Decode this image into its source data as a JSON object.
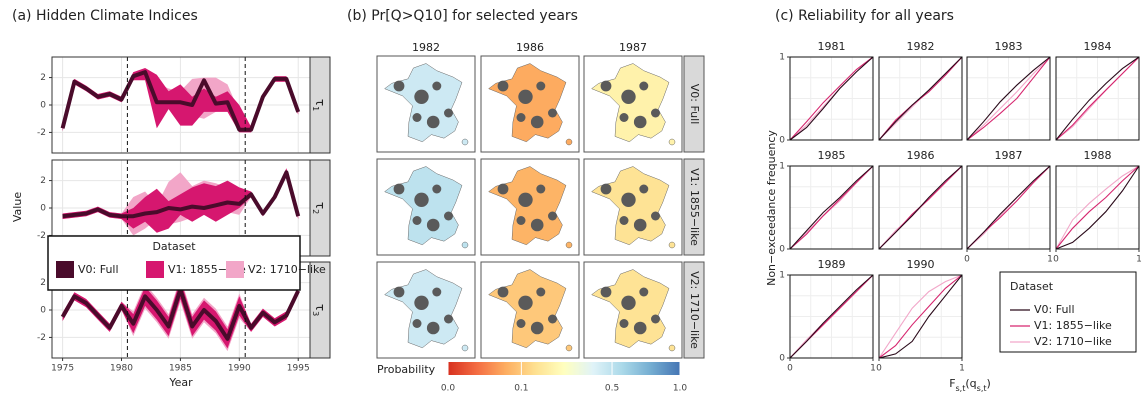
{
  "chart_data": [
    {
      "type": "line",
      "title": "(a) Hidden Climate Indices",
      "xlabel": "Year",
      "ylabel": "Value",
      "x": [
        1975,
        1976,
        1977,
        1978,
        1979,
        1980,
        1981,
        1982,
        1983,
        1984,
        1985,
        1986,
        1987,
        1988,
        1989,
        1990,
        1991,
        1992,
        1993,
        1994,
        1995
      ],
      "xlim": [
        1974.1,
        1996
      ],
      "xticks": [
        1975,
        1980,
        1985,
        1990,
        1995
      ],
      "ylim": [
        -3.5,
        3.5
      ],
      "yticks": [
        -2,
        0,
        2
      ],
      "vlines": [
        1980.5,
        1990.5
      ],
      "grid": true,
      "legend": {
        "title": "Dataset",
        "position": "center"
      },
      "series": [
        {
          "name": "V0: Full",
          "color": "#4a0b2b"
        },
        {
          "name": "V1: 1855−like",
          "color": "#d6176f"
        },
        {
          "name": "V2: 1710−like",
          "color": "#f2a6c8"
        }
      ],
      "facets": [
        {
          "strip": [
            "τ",
            "1"
          ],
          "series": [
            {
              "values": [
                -1.7,
                1.7,
                1.2,
                0.6,
                0.8,
                0.4,
                2.1,
                2.4,
                0.2,
                0.2,
                0.2,
                0.0,
                1.8,
                0.1,
                0.2,
                -1.8,
                -1.8,
                0.6,
                1.9,
                1.9,
                -0.5
              ]
            },
            {
              "lower": [
                -1.9,
                1.5,
                1.0,
                0.4,
                0.6,
                0.2,
                1.8,
                1.8,
                -1.7,
                -0.3,
                -1.5,
                -1.5,
                -0.5,
                -0.5,
                -0.5,
                -2.0,
                -2.0,
                0.4,
                1.7,
                1.7,
                -0.7
              ],
              "upper": [
                -1.5,
                1.9,
                1.4,
                0.8,
                1.0,
                0.6,
                2.4,
                2.7,
                2.2,
                1.0,
                1.5,
                0.6,
                1.2,
                0.6,
                1.0,
                0.0,
                -1.6,
                0.8,
                2.1,
                2.1,
                -0.3
              ]
            },
            {
              "lower": [
                -1.9,
                1.5,
                1.0,
                0.4,
                0.6,
                0.2,
                1.8,
                1.9,
                -0.5,
                -0.2,
                -0.5,
                -0.8,
                -1.0,
                -0.5,
                -0.3,
                -1.5,
                -2.0,
                0.4,
                1.7,
                1.7,
                -0.7
              ],
              "upper": [
                -1.5,
                1.9,
                1.4,
                0.8,
                1.0,
                0.6,
                2.4,
                2.6,
                1.6,
                1.2,
                1.0,
                1.9,
                2.0,
                2.0,
                1.5,
                -0.5,
                -1.6,
                0.8,
                2.1,
                2.1,
                -0.3
              ]
            }
          ]
        },
        {
          "strip": [
            "τ",
            "2"
          ],
          "series": [
            {
              "values": [
                -0.6,
                -0.5,
                -0.4,
                -0.1,
                -0.5,
                -0.6,
                -0.6,
                -0.4,
                -0.3,
                0.0,
                -0.1,
                0.1,
                0.0,
                0.2,
                0.4,
                0.3,
                1.0,
                -0.4,
                0.8,
                2.6,
                -0.6
              ]
            },
            {
              "lower": [
                -0.8,
                -0.7,
                -0.6,
                -0.3,
                -0.7,
                -0.8,
                -1.5,
                -1.0,
                -1.8,
                -1.5,
                -0.5,
                -1.0,
                -0.5,
                -1.0,
                -0.5,
                0.0,
                0.8,
                -0.6,
                0.6,
                2.3,
                -0.8
              ],
              "upper": [
                -0.4,
                -0.3,
                -0.2,
                0.1,
                -0.3,
                -0.4,
                0.0,
                0.8,
                1.4,
                0.5,
                1.0,
                1.5,
                1.8,
                1.6,
                2.0,
                1.5,
                1.2,
                -0.2,
                1.0,
                2.9,
                -0.4
              ]
            },
            {
              "lower": [
                -0.8,
                -0.7,
                -0.6,
                -0.3,
                -0.7,
                -0.8,
                -2.0,
                -1.5,
                -0.8,
                -1.2,
                -1.0,
                -0.7,
                -0.5,
                -0.5,
                -0.3,
                -0.5,
                0.8,
                -0.6,
                0.6,
                2.3,
                -0.8
              ],
              "upper": [
                -0.4,
                -0.3,
                -0.2,
                0.1,
                -0.3,
                -0.4,
                0.8,
                1.2,
                0.2,
                1.9,
                2.6,
                1.6,
                2.0,
                1.8,
                1.5,
                1.0,
                1.2,
                -0.2,
                1.0,
                2.9,
                -0.4
              ]
            }
          ]
        },
        {
          "strip": [
            "τ",
            "3"
          ],
          "series": [
            {
              "values": [
                -0.5,
                1.0,
                0.5,
                -0.4,
                -1.3,
                0.3,
                -1.0,
                1.0,
                0.0,
                -1.2,
                1.5,
                -1.2,
                0.0,
                -0.8,
                -2.1,
                0.3,
                -1.3,
                -0.2,
                -0.9,
                -0.4,
                1.4
              ]
            },
            {
              "lower": [
                -0.8,
                0.7,
                0.2,
                -0.7,
                -1.6,
                0.0,
                -1.7,
                0.3,
                -0.7,
                -1.9,
                0.8,
                -1.9,
                -0.7,
                -1.5,
                -2.8,
                -0.4,
                -1.6,
                -0.5,
                -1.2,
                -0.7,
                1.1
              ],
              "upper": [
                -0.2,
                1.3,
                0.8,
                -0.1,
                -1.0,
                0.6,
                -0.3,
                1.7,
                0.7,
                -0.5,
                2.2,
                -0.5,
                0.7,
                -0.1,
                -1.4,
                1.0,
                -1.0,
                0.1,
                -0.6,
                -0.1,
                1.7
              ]
            },
            {
              "lower": [
                -0.8,
                0.7,
                0.2,
                -0.7,
                -1.6,
                0.0,
                -1.9,
                0.1,
                -0.9,
                -2.1,
                0.6,
                -2.1,
                -0.9,
                -1.7,
                -3.0,
                -0.6,
                -1.6,
                -0.5,
                -1.2,
                -0.7,
                1.1
              ],
              "upper": [
                -0.2,
                1.3,
                0.8,
                -0.1,
                -1.0,
                0.6,
                -0.1,
                1.9,
                0.9,
                -0.3,
                2.4,
                -0.3,
                0.9,
                0.1,
                -1.2,
                1.2,
                -1.0,
                0.1,
                -0.6,
                -0.1,
                1.7
              ]
            }
          ]
        }
      ]
    },
    {
      "type": "map",
      "title": "(b) Pr[Q>Q10] for selected years",
      "columns": [
        "1982",
        "1986",
        "1987"
      ],
      "rows": [
        "V0: Full",
        "V1: 1855−like",
        "V2: 1710−like"
      ],
      "values": [
        [
          0.45,
          0.06,
          0.2
        ],
        [
          0.5,
          0.07,
          0.15
        ],
        [
          0.45,
          0.1,
          0.15
        ]
      ],
      "colorbar": {
        "label": "Probability",
        "lim": [
          0,
          1
        ],
        "scale": "sqrt",
        "ticks": [
          {
            "value": 0,
            "label": "0.0"
          },
          0.1,
          0.5,
          {
            "value": 1,
            "label": "1.0"
          }
        ],
        "colors": [
          "#d7301f",
          "#f46d43",
          "#fdae61",
          "#fee090",
          "#ffffbf",
          "#e0f3f8",
          "#abd9e9",
          "#74add1",
          "#4575b4"
        ]
      }
    },
    {
      "type": "line",
      "title": "(c) Reliability for all years",
      "xlabel": [
        "F",
        "s,t",
        "(q",
        "s,t",
        ")"
      ],
      "ylabel": "Non−exceedance frequency",
      "x": [
        0,
        0.2,
        0.4,
        0.6,
        0.8,
        1
      ],
      "xlim": [
        0,
        1
      ],
      "ylim": [
        0,
        1
      ],
      "xticks": [
        0,
        1
      ],
      "yticks": [
        0,
        1
      ],
      "grid": true,
      "legend": {
        "title": "Dataset",
        "position": "right"
      },
      "series": [
        {
          "name": "V0: Full",
          "color": "#2a0a1a"
        },
        {
          "name": "V1: 1855−like",
          "color": "#d6266f"
        },
        {
          "name": "V2: 1710−like",
          "color": "#f2a7c9"
        }
      ],
      "facets": [
        {
          "title": "1981",
          "values": [
            [
              0,
              0.15,
              0.38,
              0.62,
              0.82,
              1
            ],
            [
              0,
              0.22,
              0.45,
              0.65,
              0.85,
              1
            ],
            [
              0,
              0.18,
              0.4,
              0.62,
              0.82,
              1
            ]
          ]
        },
        {
          "title": "1982",
          "values": [
            [
              0,
              0.22,
              0.42,
              0.6,
              0.8,
              1
            ],
            [
              0,
              0.24,
              0.42,
              0.58,
              0.78,
              1
            ],
            [
              0,
              0.2,
              0.4,
              0.6,
              0.8,
              1
            ]
          ]
        },
        {
          "title": "1983",
          "values": [
            [
              0,
              0.22,
              0.46,
              0.66,
              0.84,
              1
            ],
            [
              0,
              0.15,
              0.32,
              0.5,
              0.75,
              1
            ],
            [
              0,
              0.18,
              0.38,
              0.58,
              0.8,
              1
            ]
          ]
        },
        {
          "title": "1984",
          "values": [
            [
              0,
              0.25,
              0.48,
              0.68,
              0.86,
              1
            ],
            [
              0,
              0.18,
              0.4,
              0.6,
              0.8,
              1
            ],
            [
              0,
              0.16,
              0.38,
              0.6,
              0.8,
              1
            ]
          ]
        },
        {
          "title": "1985",
          "values": [
            [
              0,
              0.22,
              0.44,
              0.62,
              0.82,
              1
            ],
            [
              0,
              0.18,
              0.4,
              0.6,
              0.8,
              1
            ],
            [
              0,
              0.2,
              0.4,
              0.58,
              0.8,
              1
            ]
          ]
        },
        {
          "title": "1986",
          "values": [
            [
              0,
              0.2,
              0.4,
              0.62,
              0.82,
              1
            ],
            [
              0,
              0.2,
              0.42,
              0.6,
              0.8,
              1
            ],
            [
              0,
              0.22,
              0.4,
              0.6,
              0.82,
              1
            ]
          ]
        },
        {
          "title": "1987",
          "values": [
            [
              0,
              0.2,
              0.42,
              0.62,
              0.82,
              1
            ],
            [
              0,
              0.2,
              0.38,
              0.58,
              0.8,
              1
            ],
            [
              0,
              0.18,
              0.4,
              0.62,
              0.8,
              1
            ]
          ]
        },
        {
          "title": "1988",
          "values": [
            [
              0,
              0.08,
              0.25,
              0.45,
              0.7,
              1
            ],
            [
              0,
              0.25,
              0.45,
              0.62,
              0.82,
              1
            ],
            [
              0,
              0.35,
              0.55,
              0.72,
              0.88,
              1
            ]
          ]
        },
        {
          "title": "1989",
          "values": [
            [
              0,
              0.2,
              0.42,
              0.62,
              0.82,
              1
            ],
            [
              0,
              0.2,
              0.4,
              0.6,
              0.8,
              1
            ],
            [
              0,
              0.22,
              0.42,
              0.6,
              0.8,
              1
            ]
          ]
        },
        {
          "title": "1990",
          "values": [
            [
              0,
              0.05,
              0.2,
              0.5,
              0.75,
              1
            ],
            [
              0,
              0.15,
              0.4,
              0.62,
              0.84,
              1
            ],
            [
              0,
              0.3,
              0.6,
              0.8,
              0.92,
              1
            ]
          ]
        }
      ]
    }
  ]
}
